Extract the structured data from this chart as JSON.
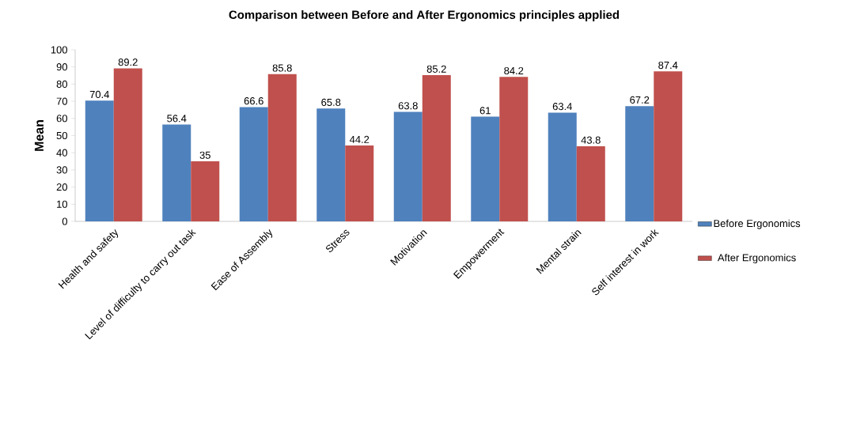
{
  "chart_data": {
    "type": "bar",
    "title": "Comparison between Before and After Ergonomics principles applied",
    "ylabel": "Mean",
    "categories": [
      "Health and safety",
      "Level of difficulty to carry out task",
      "Ease of Assembly",
      "Stress",
      "Motivation",
      "Empowerment",
      "Mental strain",
      "Self interest in work"
    ],
    "series": [
      {
        "name": "Before Ergonomics",
        "color": "#4f81bd",
        "values": [
          70.4,
          56.4,
          66.6,
          65.8,
          63.8,
          61,
          63.4,
          67.2
        ]
      },
      {
        "name": "After Ergonomics",
        "color": "#c0504d",
        "values": [
          89.2,
          35,
          85.8,
          44.2,
          85.2,
          84.2,
          43.8,
          87.4
        ]
      }
    ],
    "ylim": [
      0,
      100
    ],
    "yticks": [
      0,
      10,
      20,
      30,
      40,
      50,
      60,
      70,
      80,
      90,
      100
    ],
    "data_labels": true,
    "legend": "right",
    "grid": false
  }
}
